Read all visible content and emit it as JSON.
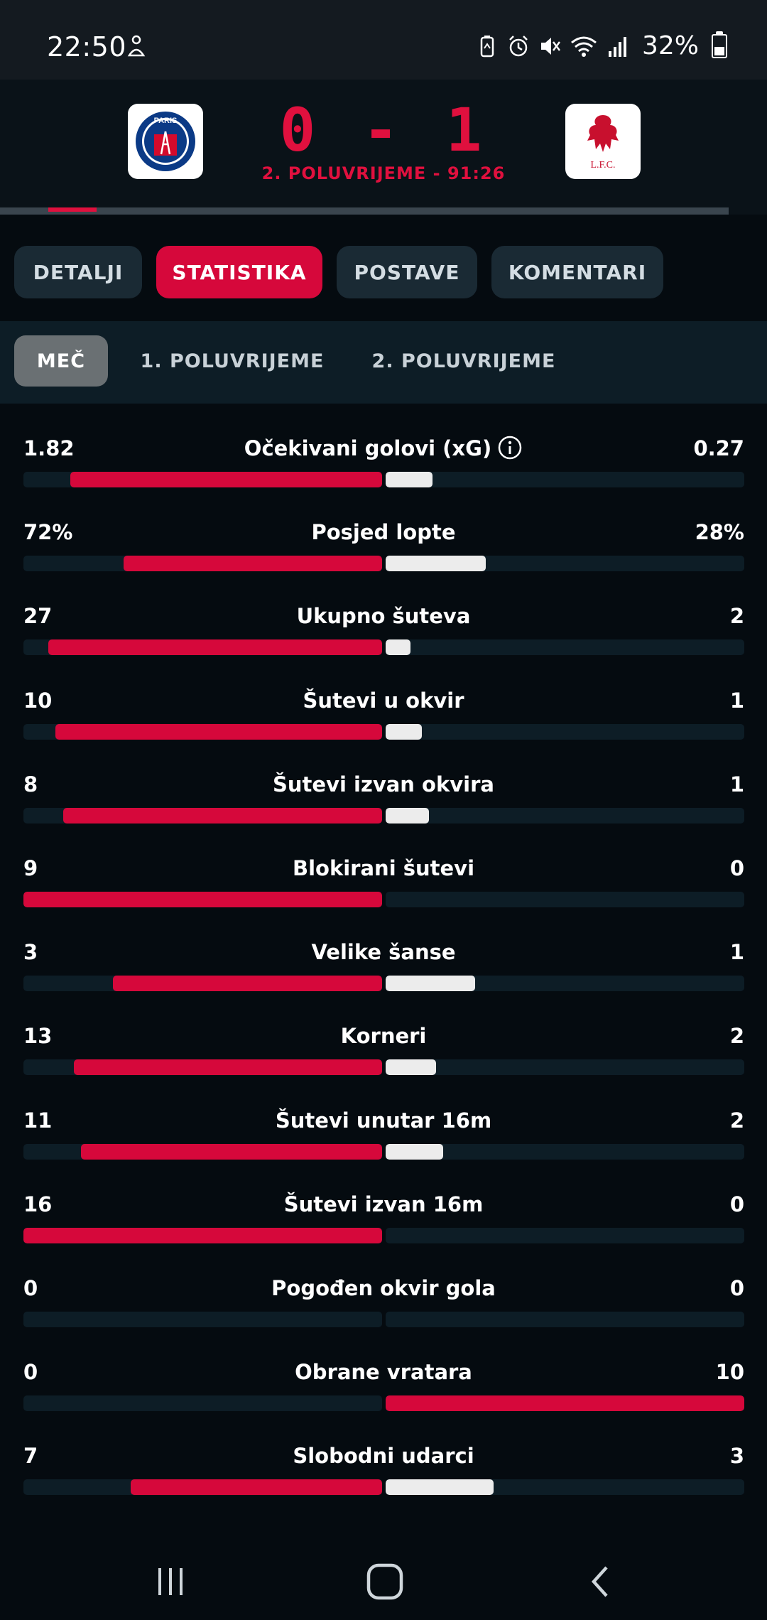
{
  "status_bar": {
    "time": "22:50",
    "battery": "32%",
    "icons": [
      "notification-icon",
      "battery-saver-icon",
      "alarm-icon",
      "mute-icon",
      "wifi-icon",
      "signal-icon",
      "battery-icon"
    ]
  },
  "match": {
    "home_logo": "psg-logo",
    "home_logo_text": "PARIS",
    "away_logo": "liverpool-logo",
    "away_logo_text": "L.F.C.",
    "score": "0 - 1",
    "period": "2. POLUVRIJEME - 91:26"
  },
  "tabs": [
    {
      "label": "DETALJI",
      "active": false
    },
    {
      "label": "STATISTIKA",
      "active": true
    },
    {
      "label": "POSTAVE",
      "active": false
    },
    {
      "label": "KOMENTARI",
      "active": false
    }
  ],
  "subtabs": [
    {
      "label": "MEČ",
      "active": true
    },
    {
      "label": "1. POLUVRIJEME",
      "active": false
    },
    {
      "label": "2. POLUVRIJEME",
      "active": false
    }
  ],
  "colors": {
    "accent": "#d6083b",
    "away_bar": "#ececec",
    "track": "#0d1d26",
    "background": "#050b10"
  },
  "stats": [
    {
      "label": "Očekivani golovi (xG)",
      "home": "1.82",
      "away": "0.27",
      "home_fraction": 0.87,
      "away_fraction": 0.13,
      "info": true
    },
    {
      "label": "Posjed lopte",
      "home": "72%",
      "away": "28%",
      "home_fraction": 0.72,
      "away_fraction": 0.28
    },
    {
      "label": "Ukupno šuteva",
      "home": "27",
      "away": "2",
      "home_fraction": 0.93,
      "away_fraction": 0.07
    },
    {
      "label": "Šutevi u okvir",
      "home": "10",
      "away": "1",
      "home_fraction": 0.91,
      "away_fraction": 0.1
    },
    {
      "label": "Šutevi izvan okvira",
      "home": "8",
      "away": "1",
      "home_fraction": 0.89,
      "away_fraction": 0.12
    },
    {
      "label": "Blokirani šutevi",
      "home": "9",
      "away": "0",
      "home_fraction": 1.0,
      "away_fraction": 0.0
    },
    {
      "label": "Velike šanse",
      "home": "3",
      "away": "1",
      "home_fraction": 0.75,
      "away_fraction": 0.25
    },
    {
      "label": "Korneri",
      "home": "13",
      "away": "2",
      "home_fraction": 0.86,
      "away_fraction": 0.14
    },
    {
      "label": "Šutevi unutar 16m",
      "home": "11",
      "away": "2",
      "home_fraction": 0.84,
      "away_fraction": 0.16
    },
    {
      "label": "Šutevi izvan 16m",
      "home": "16",
      "away": "0",
      "home_fraction": 1.0,
      "away_fraction": 0.0
    },
    {
      "label": "Pogođen okvir gola",
      "home": "0",
      "away": "0",
      "home_fraction": 0.0,
      "away_fraction": 0.0
    },
    {
      "label": "Obrane vratara",
      "home": "0",
      "away": "10",
      "home_fraction": 0.0,
      "away_fraction": 1.0,
      "away_highlight": true
    },
    {
      "label": "Slobodni udarci",
      "home": "7",
      "away": "3",
      "home_fraction": 0.7,
      "away_fraction": 0.3
    }
  ],
  "nav_bar": {
    "icons": [
      "recent-apps-icon",
      "home-icon",
      "back-icon"
    ]
  }
}
